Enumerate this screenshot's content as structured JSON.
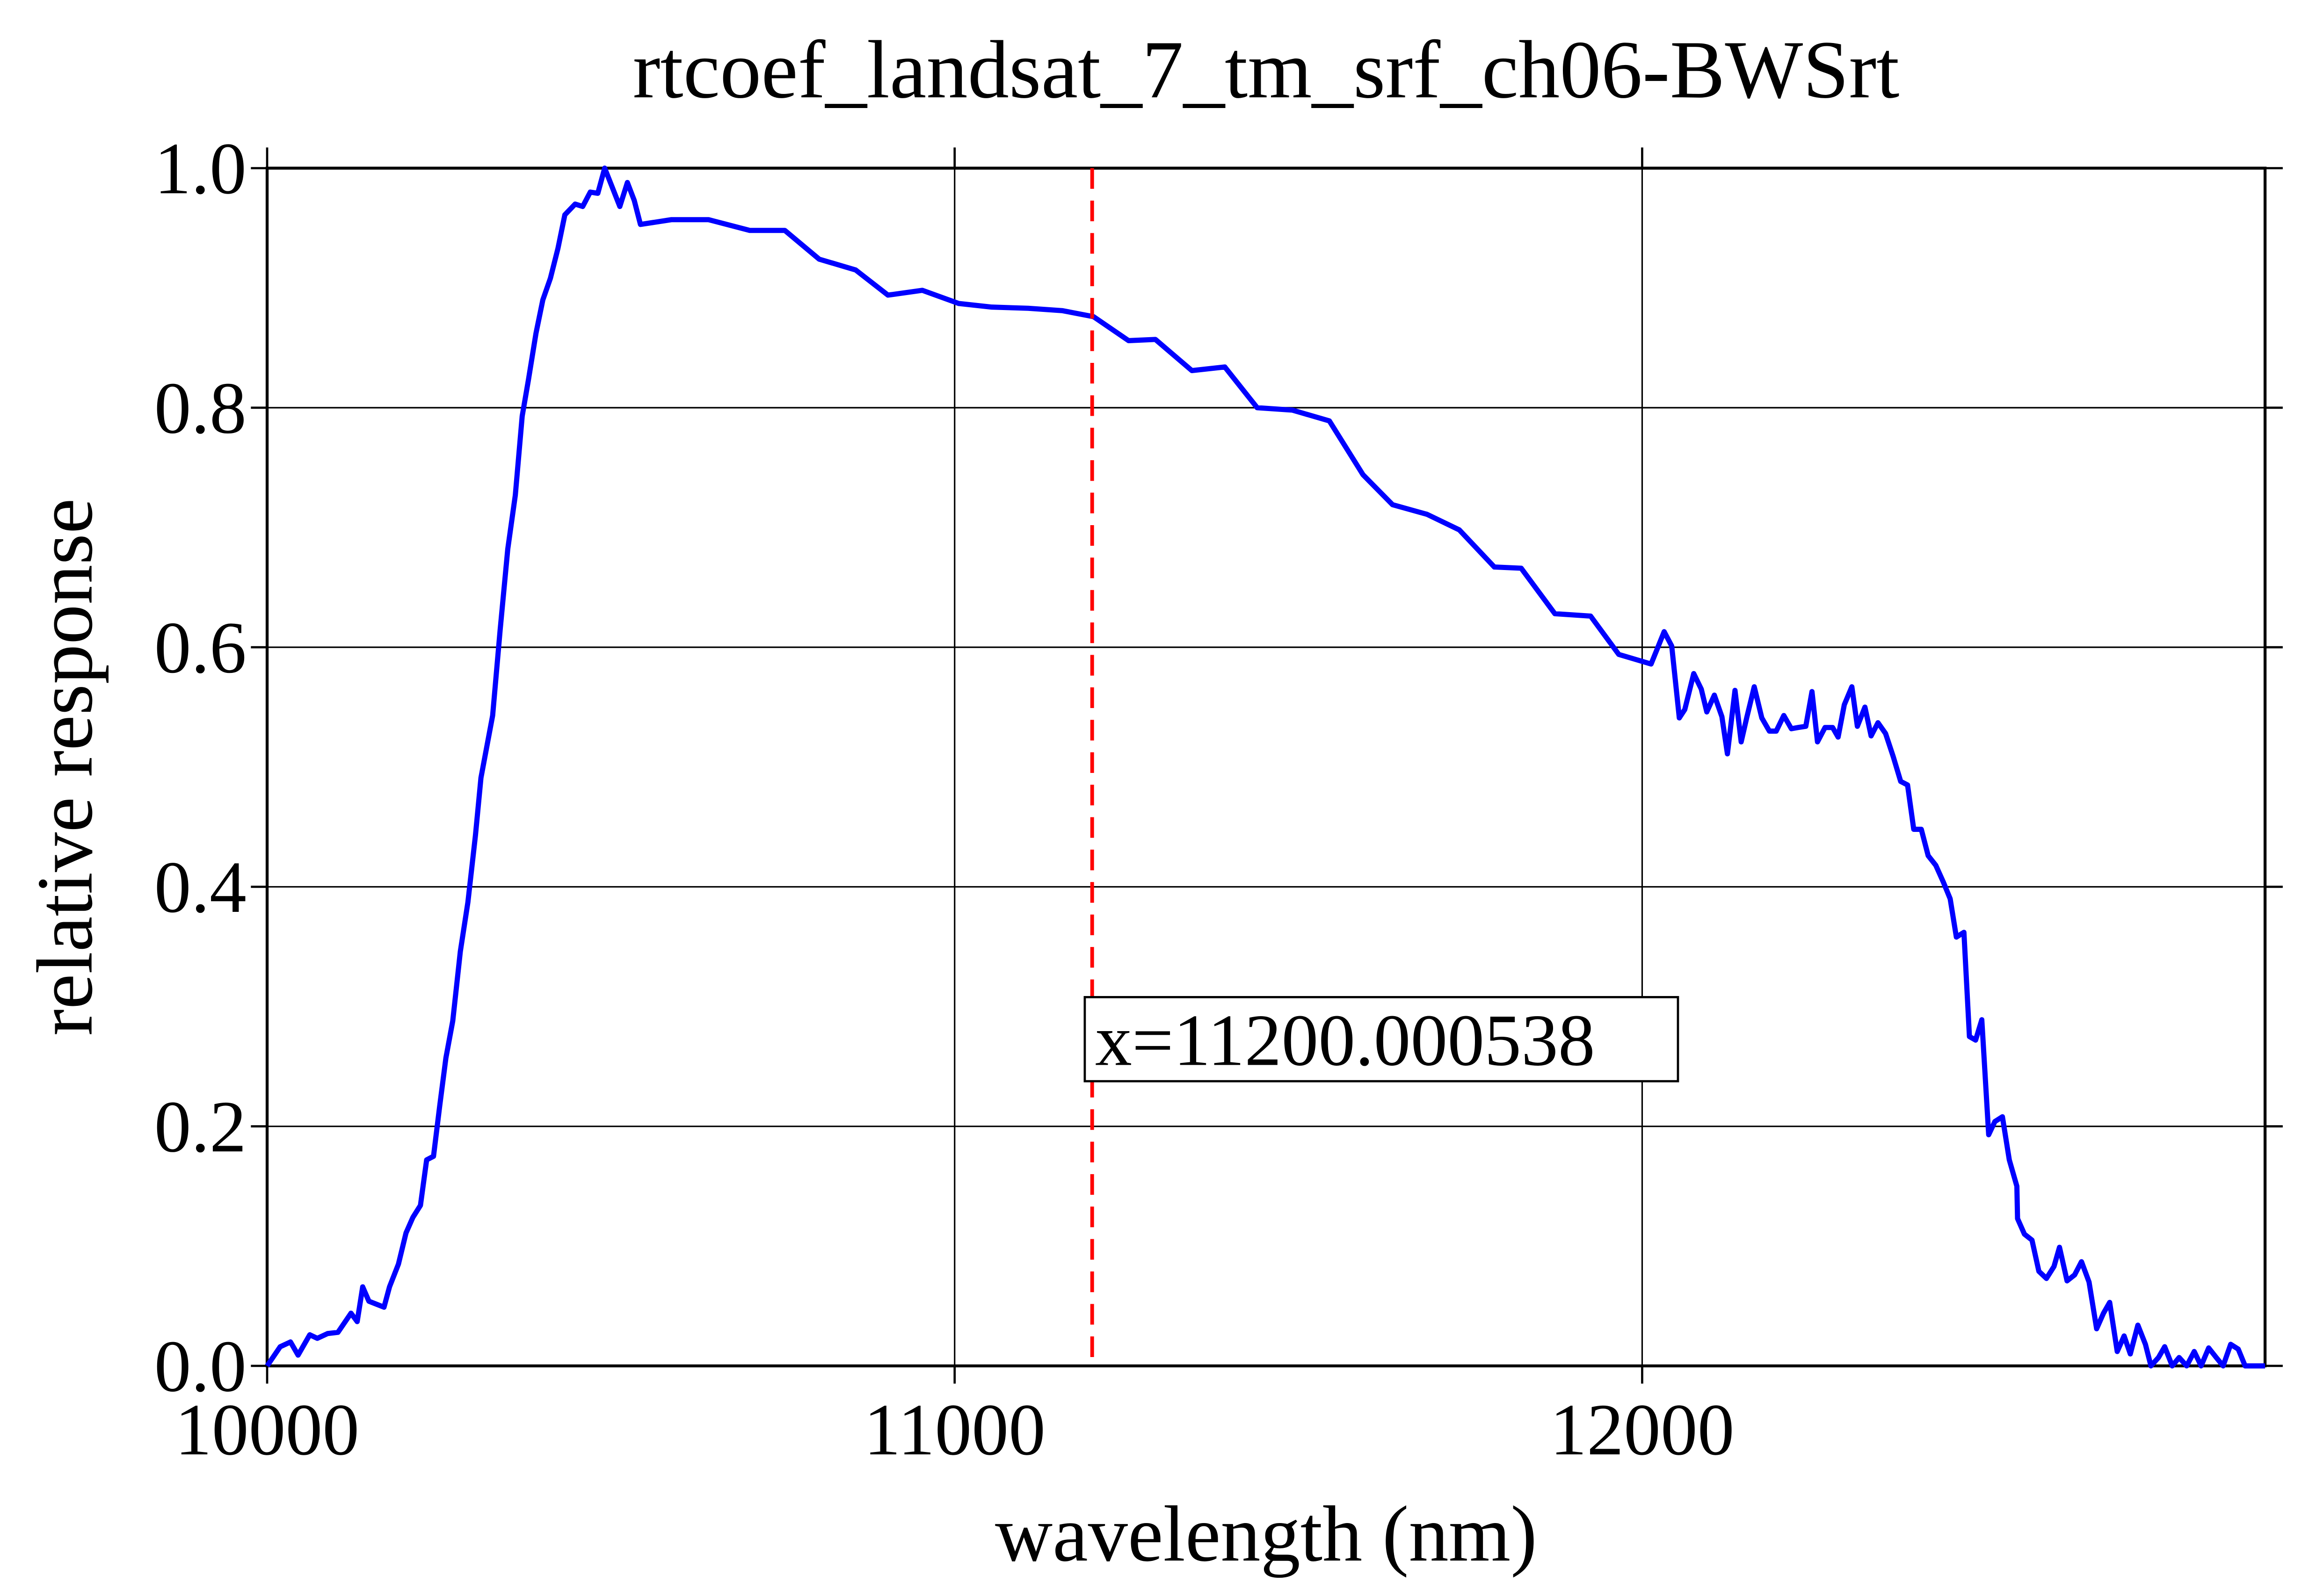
{
  "chart_data": {
    "type": "line",
    "title": "rtcoef_landsat_7_tm_srf_ch06-BWSrt",
    "xlabel": "wavelength (nm)",
    "ylabel": "relative response",
    "xlim": [
      10000,
      12906
    ],
    "ylim": [
      0,
      1
    ],
    "xticks": [
      10000,
      11000,
      12000
    ],
    "yticks": [
      {
        "value": 0,
        "label": "0.0"
      },
      0.2,
      0.4,
      0.6,
      0.8,
      {
        "value": 1,
        "label": "1.0"
      }
    ],
    "grid": true,
    "vline": {
      "x": 11200.000538,
      "label": "x=11200.000538",
      "color": "#ff0000"
    },
    "x": [
      10000,
      10019,
      10034,
      10045,
      10062,
      10073,
      10088,
      10103,
      10122,
      10131,
      10139,
      10148,
      10170,
      10178,
      10191,
      10202,
      10212,
      10223,
      10232,
      10242,
      10251,
      10260,
      10270,
      10281,
      10292,
      10303,
      10311,
      10328,
      10339,
      10350,
      10361,
      10371,
      10380,
      10391,
      10401,
      10412,
      10423,
      10433,
      10448,
      10459,
      10470,
      10481,
      10491,
      10502,
      10513,
      10524,
      10534,
      10543,
      10588,
      10642,
      10702,
      10753,
      10803,
      10856,
      10903,
      10953,
      11006,
      11054,
      11107,
      11157,
      11202,
      11253,
      11292,
      11345,
      11393,
      11440,
      11491,
      11545,
      11594,
      11637,
      11687,
      11734,
      11785,
      11824,
      11873,
      11925,
      11966,
      12013,
      12032,
      12043,
      12054,
      12062,
      12075,
      12086,
      12094,
      12105,
      12116,
      12124,
      12135,
      12144,
      12152,
      12163,
      12174,
      12185,
      12195,
      12206,
      12217,
      12227,
      12238,
      12247,
      12255,
      12266,
      12277,
      12285,
      12294,
      12305,
      12313,
      12324,
      12333,
      12343,
      12354,
      12365,
      12376,
      12386,
      12395,
      12406,
      12416,
      12427,
      12438,
      12448,
      12457,
      12468,
      12476,
      12485,
      12494,
      12504,
      12513,
      12524,
      12534,
      12545,
      12546,
      12556,
      12567,
      12577,
      12588,
      12599,
      12607,
      12618,
      12629,
      12639,
      12650,
      12661,
      12671,
      12680,
      12691,
      12701,
      12710,
      12721,
      12732,
      12740,
      12751,
      12760,
      12771,
      12781,
      12792,
      12803,
      12813,
      12824,
      12835,
      12845,
      12856,
      12867,
      12877,
      12906
    ],
    "series": [
      {
        "name": "rtcoef_landsat_7_tm_srf_ch06-BWSrt",
        "color": "#0000ff",
        "values": [
          0,
          0.016,
          0.02,
          0.009,
          0.026,
          0.023,
          0.027,
          0.028,
          0.044,
          0.037,
          0.066,
          0.054,
          0.049,
          0.066,
          0.085,
          0.111,
          0.124,
          0.134,
          0.172,
          0.175,
          0.217,
          0.257,
          0.288,
          0.346,
          0.387,
          0.443,
          0.491,
          0.543,
          0.615,
          0.682,
          0.727,
          0.793,
          0.823,
          0.862,
          0.89,
          0.908,
          0.933,
          0.961,
          0.97,
          0.968,
          0.98,
          0.979,
          1.0,
          0.984,
          0.968,
          0.988,
          0.973,
          0.953,
          0.957,
          0.957,
          0.948,
          0.948,
          0.924,
          0.915,
          0.894,
          0.898,
          0.887,
          0.884,
          0.883,
          0.881,
          0.876,
          0.856,
          0.857,
          0.831,
          0.834,
          0.8,
          0.798,
          0.789,
          0.744,
          0.719,
          0.711,
          0.698,
          0.667,
          0.666,
          0.628,
          0.626,
          0.594,
          0.586,
          0.613,
          0.601,
          0.541,
          0.548,
          0.578,
          0.565,
          0.546,
          0.56,
          0.542,
          0.511,
          0.564,
          0.521,
          0.541,
          0.567,
          0.541,
          0.53,
          0.53,
          0.543,
          0.532,
          0.533,
          0.534,
          0.563,
          0.521,
          0.533,
          0.533,
          0.525,
          0.552,
          0.567,
          0.534,
          0.55,
          0.526,
          0.537,
          0.528,
          0.509,
          0.488,
          0.485,
          0.448,
          0.448,
          0.426,
          0.418,
          0.404,
          0.39,
          0.358,
          0.362,
          0.275,
          0.272,
          0.289,
          0.193,
          0.204,
          0.208,
          0.172,
          0.15,
          0.123,
          0.11,
          0.105,
          0.079,
          0.073,
          0.083,
          0.099,
          0.071,
          0.076,
          0.087,
          0.07,
          0.031,
          0.044,
          0.053,
          0.012,
          0.025,
          0.01,
          0.034,
          0.018,
          0,
          0.007,
          0.016,
          0,
          0.007,
          0,
          0.012,
          0,
          0.015,
          0.007,
          0,
          0.018,
          0.014,
          0,
          0
        ]
      }
    ]
  }
}
